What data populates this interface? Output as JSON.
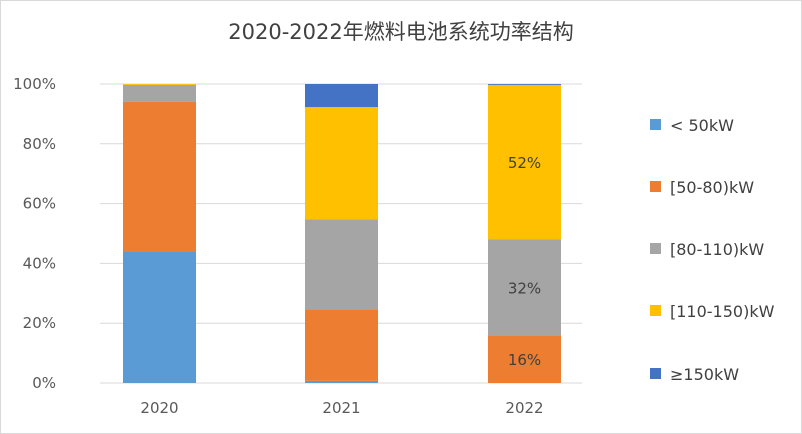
{
  "chart_data": {
    "type": "bar",
    "stacked": true,
    "percent": true,
    "title": "2020-2022年燃料电池系统功率结构",
    "categories": [
      "2020",
      "2021",
      "2022"
    ],
    "ylim": [
      0,
      100
    ],
    "yticks": [
      "0%",
      "20%",
      "40%",
      "60%",
      "80%",
      "100%"
    ],
    "grid": true,
    "legend": "right",
    "series": [
      {
        "name": "< 50kW",
        "color": "#5b9bd5",
        "values": [
          44,
          0.7,
          0
        ],
        "labels": [
          "",
          "",
          ""
        ]
      },
      {
        "name": "[50-80)kW",
        "color": "#ed7d31",
        "values": [
          50,
          24,
          16
        ],
        "labels": [
          "",
          "",
          "16%"
        ]
      },
      {
        "name": "[80-110)kW",
        "color": "#a5a5a5",
        "values": [
          5.7,
          30,
          32
        ],
        "labels": [
          "",
          "",
          "32%"
        ]
      },
      {
        "name": "[110-150)kW",
        "color": "#ffc000",
        "values": [
          0.3,
          37.6,
          51.7
        ],
        "labels": [
          "",
          "",
          "52%"
        ]
      },
      {
        "name": "≥150kW",
        "color": "#4472c4",
        "values": [
          0,
          7.7,
          0.3
        ],
        "labels": [
          "",
          "",
          ""
        ]
      }
    ]
  }
}
